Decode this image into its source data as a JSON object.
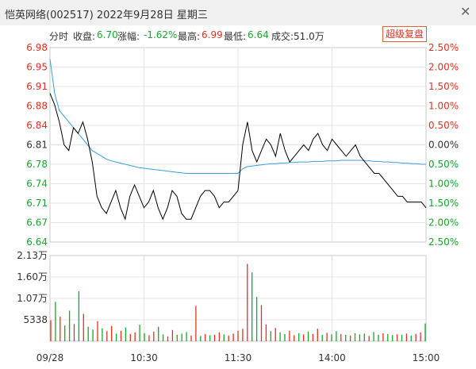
{
  "window": {
    "title": "恺英网络(002517) 2022年9月28日 星期三",
    "close_glyph": "✕"
  },
  "info": {
    "mode": "分时",
    "close_label": "收盘:",
    "close_value": "6.70",
    "change_label": "涨幅:",
    "change_value": "-1.62%",
    "high_label": "最高:",
    "high_value": "6.99",
    "low_label": "最低:",
    "low_value": "6.64",
    "volume_label": "成交:",
    "volume_value": "51.0万",
    "replay_button": "超级复盘"
  },
  "colors": {
    "up": "#e0321e",
    "down": "#13a82a",
    "neutral": "#333333",
    "avg": "#3aa0d6",
    "price": "#000000"
  },
  "chart_data": {
    "type": "line",
    "price_axis": {
      "ticks": [
        "6.98",
        "6.95",
        "6.91",
        "6.88",
        "6.84",
        "6.81",
        "6.78",
        "6.74",
        "6.71",
        "6.67",
        "6.64"
      ],
      "ylim": [
        6.64,
        6.98
      ]
    },
    "pct_axis": {
      "ticks": [
        "2.50%",
        "2.00%",
        "1.50%",
        "1.00%",
        "0.50%",
        "0.00%",
        "0.50%",
        "1.00%",
        "1.50%",
        "2.00%",
        "2.50%"
      ]
    },
    "volume_axis": {
      "ticks": [
        "2.13万",
        "1.60万",
        "1.07万",
        "5338"
      ],
      "ylim": [
        0,
        21300
      ]
    },
    "time_labels": [
      "09/28",
      "10:30",
      "11:30",
      "14:00",
      "15:00"
    ],
    "price": [
      6.9,
      6.88,
      6.85,
      6.81,
      6.8,
      6.84,
      6.83,
      6.85,
      6.82,
      6.78,
      6.72,
      6.7,
      6.69,
      6.71,
      6.73,
      6.7,
      6.68,
      6.72,
      6.74,
      6.72,
      6.7,
      6.71,
      6.73,
      6.7,
      6.68,
      6.7,
      6.73,
      6.72,
      6.69,
      6.68,
      6.68,
      6.7,
      6.72,
      6.73,
      6.73,
      6.72,
      6.7,
      6.71,
      6.71,
      6.72,
      6.73,
      6.81,
      6.85,
      6.8,
      6.78,
      6.8,
      6.82,
      6.81,
      6.79,
      6.83,
      6.8,
      6.78,
      6.79,
      6.8,
      6.81,
      6.8,
      6.82,
      6.83,
      6.81,
      6.8,
      6.82,
      6.81,
      6.8,
      6.79,
      6.8,
      6.81,
      6.79,
      6.78,
      6.77,
      6.76,
      6.76,
      6.75,
      6.74,
      6.73,
      6.72,
      6.72,
      6.71,
      6.71,
      6.71,
      6.71,
      6.7
    ],
    "average": [
      6.96,
      6.9,
      6.87,
      6.86,
      6.85,
      6.84,
      6.83,
      6.82,
      6.81,
      6.8,
      6.795,
      6.79,
      6.785,
      6.782,
      6.78,
      6.778,
      6.776,
      6.774,
      6.772,
      6.77,
      6.769,
      6.768,
      6.767,
      6.766,
      6.765,
      6.764,
      6.763,
      6.762,
      6.761,
      6.76,
      6.76,
      6.76,
      6.76,
      6.76,
      6.76,
      6.76,
      6.76,
      6.76,
      6.76,
      6.76,
      6.76,
      6.768,
      6.772,
      6.773,
      6.774,
      6.775,
      6.776,
      6.777,
      6.777,
      6.778,
      6.778,
      6.779,
      6.779,
      6.78,
      6.78,
      6.78,
      6.781,
      6.781,
      6.781,
      6.782,
      6.782,
      6.782,
      6.783,
      6.783,
      6.783,
      6.783,
      6.783,
      6.782,
      6.782,
      6.781,
      6.781,
      6.78,
      6.78,
      6.779,
      6.779,
      6.778,
      6.778,
      6.777,
      6.777,
      6.776,
      6.776
    ],
    "volume": [
      5200,
      9800,
      6100,
      3900,
      7600,
      4300,
      12400,
      6800,
      3600,
      2900,
      5000,
      3200,
      2500,
      3800,
      1900,
      2600,
      3400,
      1800,
      2200,
      4100,
      2000,
      1500,
      2400,
      3600,
      1700,
      1200,
      2800,
      1600,
      1900,
      2300,
      1400,
      8800,
      1300,
      1800,
      1500,
      1600,
      2200,
      1700,
      1400,
      1900,
      2600,
      3100,
      19200,
      17100,
      11000,
      9000,
      4200,
      2500,
      3300,
      2200,
      1800,
      2600,
      1500,
      2000,
      1700,
      2400,
      1800,
      3100,
      1600,
      2100,
      1700,
      2500,
      1800,
      1600,
      1400,
      2000,
      1700,
      1900,
      1300,
      2300,
      1600,
      2000,
      1800,
      1500,
      1700,
      1600,
      1900,
      1400,
      1800,
      2200,
      4400
    ],
    "volume_dir": [
      1,
      -1,
      1,
      -1,
      -1,
      1,
      -1,
      1,
      -1,
      -1,
      1,
      -1,
      1,
      1,
      -1,
      1,
      -1,
      1,
      1,
      -1,
      -1,
      1,
      1,
      -1,
      -1,
      1,
      1,
      -1,
      -1,
      -1,
      1,
      1,
      -1,
      1,
      -1,
      1,
      1,
      -1,
      1,
      1,
      1,
      1,
      1,
      -1,
      -1,
      1,
      1,
      -1,
      1,
      -1,
      -1,
      1,
      1,
      -1,
      1,
      -1,
      1,
      1,
      -1,
      1,
      -1,
      -1,
      1,
      -1,
      1,
      -1,
      -1,
      -1,
      1,
      -1,
      -1,
      1,
      -1,
      -1,
      1,
      -1,
      1,
      -1,
      1,
      1,
      -1
    ]
  }
}
